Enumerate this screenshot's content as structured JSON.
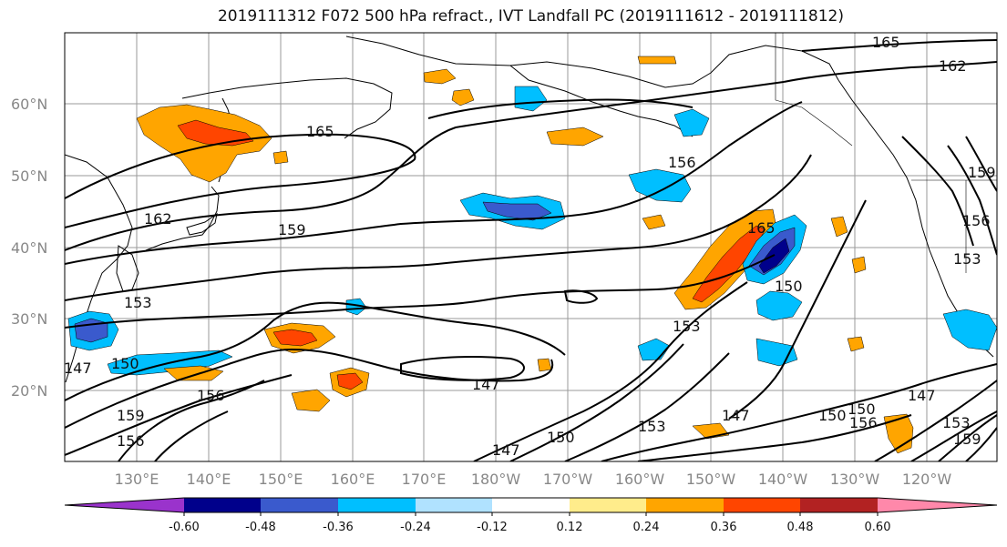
{
  "title": "2019111312 F072 500 hPa refract., IVT Landfall PC (2019111612 - 2019111812)",
  "lat_labels": [
    "60°N",
    "50°N",
    "40°N",
    "30°N",
    "20°N"
  ],
  "lon_labels": [
    "130°E",
    "140°E",
    "150°E",
    "160°E",
    "170°E",
    "180°W",
    "170°W",
    "160°W",
    "150°W",
    "140°W",
    "130°W",
    "120°W"
  ],
  "contour_labels": [
    "165",
    "162",
    "165",
    "162",
    "159",
    "156",
    "159",
    "156",
    "153",
    "150",
    "153",
    "150",
    "147",
    "147",
    "150",
    "156",
    "159",
    "153",
    "150",
    "147",
    "147",
    "147",
    "150",
    "153",
    "153",
    "156",
    "159",
    "156",
    "165"
  ],
  "colorbar": {
    "colors": [
      "#9a33cc",
      "#00008b",
      "#3a5acd",
      "#00bfff",
      "#b0e2ff",
      "#ffffff",
      "#ffec8b",
      "#ffa500",
      "#ff4500",
      "#b22222",
      "#ff88aa"
    ],
    "tick_labels": [
      "-0.60",
      "-0.48",
      "-0.36",
      "-0.24",
      "-0.12",
      "0.12",
      "0.24",
      "0.36",
      "0.48",
      "0.60"
    ]
  }
}
